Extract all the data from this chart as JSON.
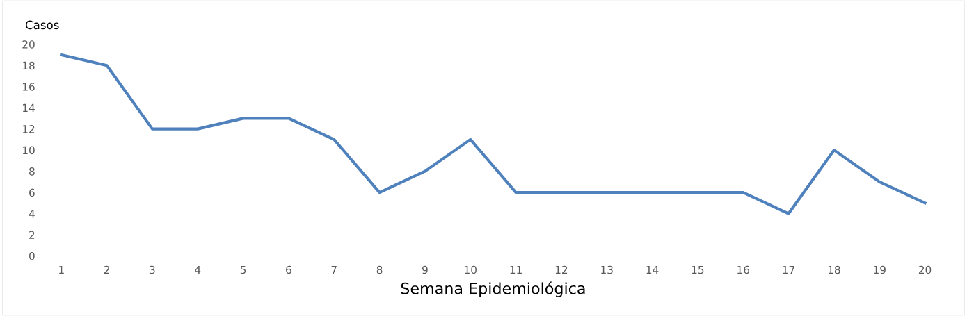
{
  "chart_data": {
    "type": "line",
    "ylabel": "Casos",
    "xlabel": "Semana Epidemiológica",
    "categories": [
      "1",
      "2",
      "3",
      "4",
      "5",
      "6",
      "7",
      "8",
      "9",
      "10",
      "11",
      "12",
      "13",
      "14",
      "15",
      "16",
      "17",
      "18",
      "19",
      "20"
    ],
    "series": [
      {
        "color": "#4f81bd",
        "values": [
          19,
          18,
          12,
          12,
          13,
          13,
          11,
          6,
          8,
          11,
          6,
          6,
          6,
          6,
          6,
          6,
          4,
          10,
          7,
          5
        ]
      }
    ],
    "ylim": [
      0,
      20
    ],
    "yticks": [
      0,
      2,
      4,
      6,
      8,
      10,
      12,
      14,
      16,
      18,
      20
    ],
    "grid": false,
    "legend": false,
    "marker": "none",
    "line_style": "solid"
  }
}
